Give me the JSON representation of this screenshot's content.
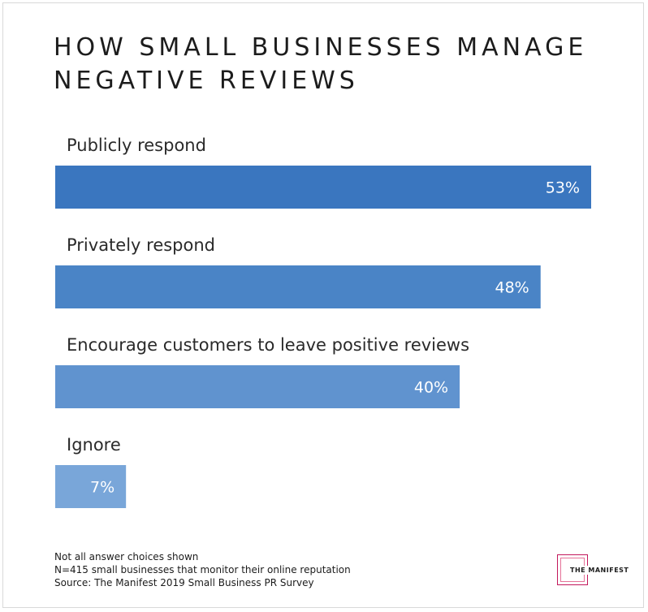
{
  "chart_data": {
    "type": "bar",
    "orientation": "horizontal",
    "title": "HOW SMALL BUSINESSES MANAGE\nNEGATIVE REVIEWS",
    "categories": [
      "Publicly respond",
      "Privately respond",
      "Encourage customers to leave positive reviews",
      "Ignore"
    ],
    "values": [
      53,
      48,
      40,
      7
    ],
    "value_labels": [
      "53%",
      "48%",
      "40%",
      "7%"
    ],
    "unit": "%",
    "xlim": [
      0,
      100
    ],
    "grid": false,
    "legend": "none",
    "colors": [
      "#3a76bf",
      "#4a84c6",
      "#6093cf",
      "#79a6d9"
    ]
  },
  "notes": [
    "Not all answer choices shown",
    "N=415 small businesses that monitor their online reputation",
    "Source: The Manifest 2019 Small Business PR Survey"
  ],
  "logo": {
    "text": "THE MANIFEST",
    "color": "#c2185b"
  }
}
